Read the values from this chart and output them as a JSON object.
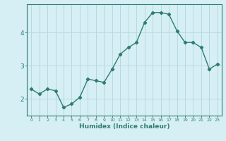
{
  "x": [
    0,
    1,
    2,
    3,
    4,
    5,
    6,
    7,
    8,
    9,
    10,
    11,
    12,
    13,
    14,
    15,
    16,
    17,
    18,
    19,
    20,
    21,
    22,
    23
  ],
  "y": [
    2.3,
    2.15,
    2.3,
    2.25,
    1.75,
    1.85,
    2.05,
    2.6,
    2.55,
    2.5,
    2.9,
    3.35,
    3.55,
    3.7,
    4.3,
    4.6,
    4.6,
    4.55,
    4.05,
    3.7,
    3.7,
    3.55,
    2.9,
    3.05
  ],
  "title": "",
  "xlabel": "Humidex (Indice chaleur)",
  "ylabel": "",
  "line_color": "#2e7d6e",
  "marker": "D",
  "marker_size": 2.2,
  "bg_color": "#d6eff5",
  "grid_color": "#b8d8e0",
  "axis_color": "#2e7d6e",
  "tick_color": "#2e7d6e",
  "label_color": "#2e7d6e",
  "ylim": [
    1.5,
    4.85
  ],
  "yticks": [
    2,
    3,
    4
  ],
  "xlim": [
    -0.5,
    23.5
  ]
}
